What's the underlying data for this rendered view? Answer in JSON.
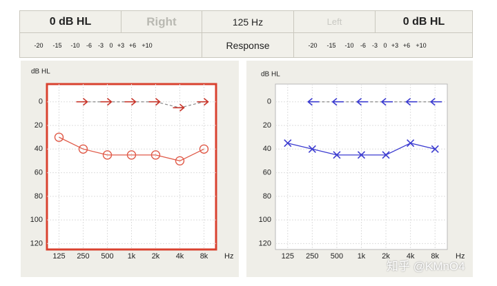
{
  "header": {
    "right_level": "0 dB HL",
    "right_label": "Right",
    "frequency": "125 Hz",
    "left_label": "Left",
    "left_level": "0 dB HL",
    "right_scale": [
      "-20",
      "-15",
      "-10",
      "-6",
      "-3",
      "0",
      "+3",
      "+6",
      "+10"
    ],
    "response": "Response",
    "left_scale": [
      "-20",
      "-15",
      "-10",
      "-6",
      "-3",
      "0",
      "+3",
      "+6",
      "+10"
    ]
  },
  "chart_data": [
    {
      "type": "line",
      "y_label": "dB HL",
      "x_unit": "Hz",
      "categories": [
        "125",
        "250",
        "500",
        "1k",
        "2k",
        "4k",
        "8k"
      ],
      "ylim": [
        -15,
        125
      ],
      "y_inverted": true,
      "yticks": [
        0,
        20,
        40,
        60,
        80,
        100,
        120
      ],
      "grid": true,
      "frame_color": "#d9412f",
      "series": [
        {
          "color": "#e05a48",
          "marker": "circle",
          "values": [
            30,
            40,
            45,
            45,
            45,
            50,
            40
          ]
        },
        {
          "color": "#c8352a",
          "marker": "arrow-right",
          "values": [
            null,
            0,
            0,
            0,
            0,
            5,
            0
          ]
        }
      ]
    },
    {
      "type": "line",
      "y_label": "dB HL",
      "x_unit": "Hz",
      "categories": [
        "125",
        "250",
        "500",
        "1k",
        "2k",
        "4k",
        "8k"
      ],
      "ylim": [
        -15,
        125
      ],
      "y_inverted": true,
      "yticks": [
        0,
        20,
        40,
        60,
        80,
        100,
        120
      ],
      "grid": true,
      "frame_color": "#b8b8b8",
      "series": [
        {
          "color": "#3a3ad0",
          "marker": "x",
          "values": [
            35,
            40,
            45,
            45,
            45,
            35,
            40
          ]
        },
        {
          "color": "#3a3ad0",
          "marker": "arrow-left",
          "values": [
            null,
            0,
            0,
            0,
            0,
            0,
            0
          ]
        }
      ]
    }
  ],
  "watermark": "知乎 @KMnO4"
}
